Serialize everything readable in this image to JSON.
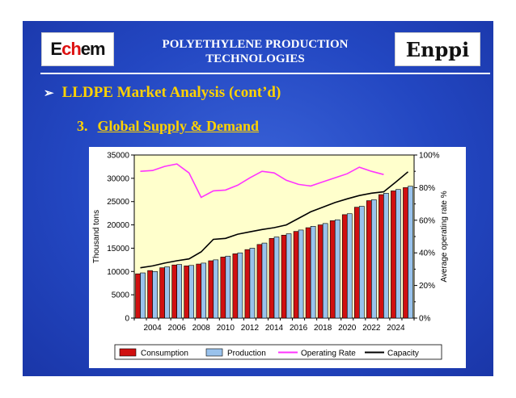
{
  "header": {
    "title_line1": "POLYETHYLENE PRODUCTION",
    "title_line2": "TECHNOLOGIES",
    "logo_left_a": "E",
    "logo_left_b": "ch",
    "logo_left_c": "em",
    "logo_right": "Enppi"
  },
  "bullet": {
    "arrow": "➢",
    "text": "LLDPE Market Analysis (cont’d)"
  },
  "section": {
    "number": "3.",
    "title": "Global Supply & Demand"
  },
  "colors": {
    "consumption": "#d01010",
    "production": "#99c2ec",
    "operating_rate": "#ff33ff",
    "capacity": "#000000",
    "plot_bg": "#ffffcc"
  },
  "chart_data": {
    "type": "bar",
    "x": [
      2003,
      2004,
      2005,
      2006,
      2007,
      2008,
      2009,
      2010,
      2011,
      2012,
      2013,
      2014,
      2015,
      2016,
      2017,
      2018,
      2019,
      2020,
      2021,
      2022,
      2023,
      2024,
      2025
    ],
    "x_ticks": [
      "2004",
      "2006",
      "2008",
      "2010",
      "2012",
      "2014",
      "2016",
      "2018",
      "2020",
      "2022",
      "2024"
    ],
    "ylabel": "Thousand tons",
    "ylabel_right": "Average operating rate %",
    "ylim": [
      0,
      35000
    ],
    "yticks": [
      "0",
      "5000",
      "10000",
      "15000",
      "20000",
      "25000",
      "30000",
      "35000"
    ],
    "ylim_right": [
      0,
      100
    ],
    "yticks_right": [
      "0%",
      "20%",
      "40%",
      "60%",
      "80%",
      "100%"
    ],
    "legend_position": "bottom",
    "grid": false,
    "series": [
      {
        "name": "Consumption",
        "type": "bar",
        "axis": "left",
        "values": [
          9500,
          10200,
          10800,
          11400,
          11200,
          11600,
          12300,
          13100,
          13800,
          14700,
          15800,
          17100,
          17800,
          18600,
          19400,
          20000,
          20900,
          22200,
          23800,
          25200,
          26500,
          27300,
          28000
        ]
      },
      {
        "name": "Production",
        "type": "bar",
        "axis": "left",
        "values": [
          9700,
          10000,
          11000,
          11500,
          11300,
          11800,
          12500,
          13300,
          14000,
          15000,
          16100,
          17400,
          18100,
          18900,
          19700,
          20300,
          21100,
          22400,
          24000,
          25400,
          26800,
          27600,
          28300
        ]
      },
      {
        "name": "Operating Rate",
        "type": "line",
        "axis": "right",
        "values": [
          90,
          90.5,
          93,
          94.5,
          89,
          74,
          78,
          78.5,
          81.5,
          86,
          90,
          89,
          84.5,
          82,
          81,
          83.5,
          86,
          88.5,
          92.5,
          90,
          88,
          null,
          null
        ]
      },
      {
        "name": "Capacity",
        "type": "line",
        "axis": "left",
        "values": [
          10800,
          11200,
          11800,
          12300,
          12700,
          14200,
          16900,
          17100,
          18000,
          18500,
          19000,
          19400,
          20000,
          21400,
          22800,
          23800,
          24800,
          25600,
          26300,
          26800,
          27100,
          29200,
          31400
        ]
      }
    ]
  }
}
